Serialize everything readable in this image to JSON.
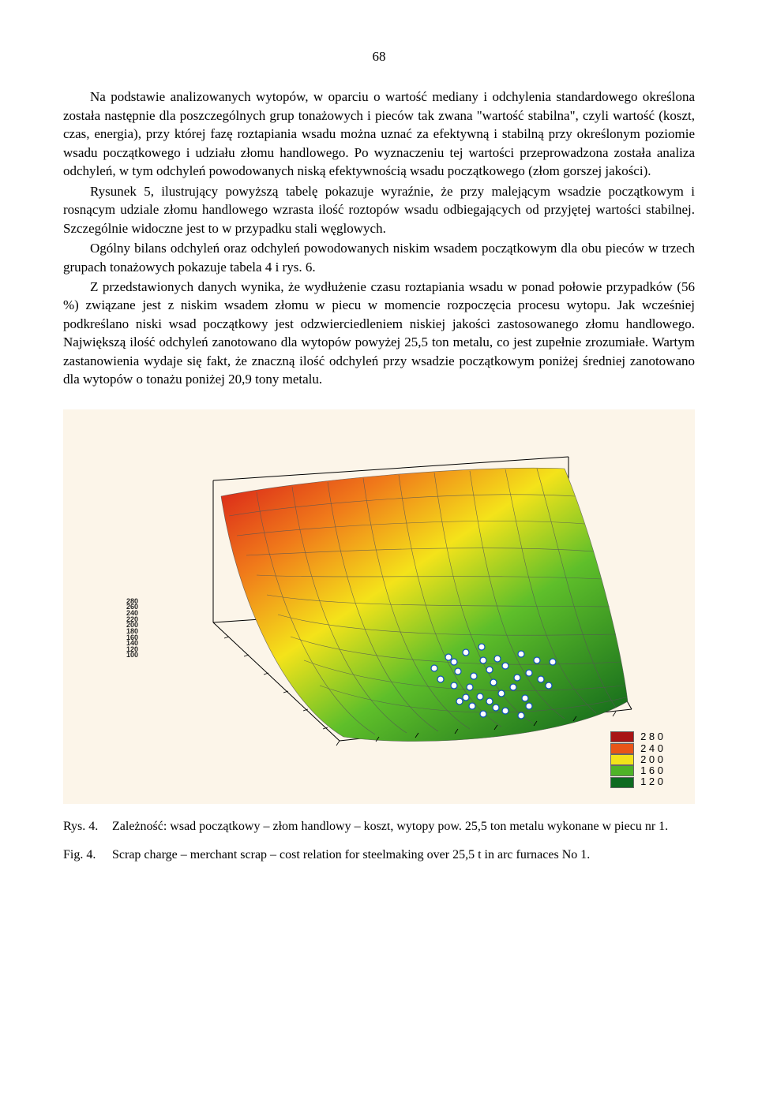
{
  "page_number": "68",
  "paragraphs": [
    "Na podstawie analizowanych wytopów, w oparciu o wartość mediany i odchylenia standardowego określona została następnie dla poszczególnych grup tonażowych i pieców tak zwana \"wartość stabilna\", czyli wartość (koszt, czas, energia), przy której fazę roztapiania wsadu można uznać za efektywną i stabilną przy określonym poziomie wsadu początkowego i udziału złomu handlowego. Po wyznaczeniu tej wartości przeprowadzona została analiza odchyleń, w tym odchyleń powodowanych niską efektywnością wsadu początkowego (złom gorszej jakości).",
    "Rysunek 5, ilustrujący powyższą tabelę pokazuje wyraźnie, że przy malejącym wsadzie początkowym i rosnącym udziale złomu handlowego wzrasta ilość roztopów wsadu odbiegających od przyjętej wartości stabilnej. Szczególnie widoczne jest to w przypadku stali węglowych.",
    "Ogólny bilans odchyleń oraz odchyleń powodowanych niskim wsadem początkowym dla obu pieców w trzech grupach tonażowych pokazuje tabela 4 i rys. 6.",
    "Z przedstawionych danych wynika, że wydłużenie czasu roztapiania wsadu w ponad połowie przypadków (56 %) związane jest z niskim wsadem złomu w piecu w momencie rozpoczęcia procesu wytopu. Jak wcześniej podkreślano niski wsad początkowy jest odzwierciedleniem niskiej jakości zastosowanego złomu handlowego. Największą ilość odchyleń zanotowano dla wytopów powyżej 25,5 ton metalu, co jest zupełnie zrozumiałe. Wartym zastanowienia wydaje się fakt, że znaczną ilość odchyleń przy wsadzie początkowym poniżej średniej zanotowano dla wytopów o tonażu poniżej 20,9 tony metalu."
  ],
  "chart": {
    "type": "3d-surface",
    "background_color": "#fcf5e9",
    "surface_gradient": {
      "high_color": "#d71919",
      "mid_high_color": "#f07a1a",
      "mid_color": "#f4e31a",
      "mid_low_color": "#5fbf2a",
      "low_color": "#0a5f1a"
    },
    "mesh_color": "#555555",
    "axis_color": "#000000",
    "scatter_marker": {
      "fill": "#ffffff",
      "stroke": "#1050c0",
      "radius": 4
    },
    "z_ticks": [
      "280",
      "260",
      "240",
      "220",
      "200",
      "180",
      "160",
      "140",
      "120",
      "100"
    ],
    "legend": [
      {
        "label": "2 8 0",
        "color": "#a81515"
      },
      {
        "label": "2 4 0",
        "color": "#e85518"
      },
      {
        "label": "2 0 0",
        "color": "#f2e21a"
      },
      {
        "label": "1 6 0",
        "color": "#4fb327"
      },
      {
        "label": "1 2 0",
        "color": "#0d6a1f"
      }
    ],
    "scatter_points": [
      [
        470,
        288
      ],
      [
        490,
        281
      ],
      [
        510,
        296
      ],
      [
        455,
        300
      ],
      [
        540,
        290
      ],
      [
        500,
        310
      ],
      [
        480,
        318
      ],
      [
        520,
        305
      ],
      [
        560,
        298
      ],
      [
        460,
        312
      ],
      [
        535,
        320
      ],
      [
        505,
        326
      ],
      [
        475,
        332
      ],
      [
        550,
        314
      ],
      [
        430,
        308
      ],
      [
        580,
        300
      ],
      [
        492,
        298
      ],
      [
        448,
        294
      ],
      [
        565,
        322
      ],
      [
        515,
        340
      ],
      [
        488,
        344
      ],
      [
        455,
        330
      ],
      [
        530,
        332
      ],
      [
        500,
        350
      ],
      [
        470,
        345
      ],
      [
        545,
        346
      ],
      [
        438,
        322
      ],
      [
        575,
        330
      ],
      [
        508,
        358
      ],
      [
        478,
        356
      ],
      [
        550,
        356
      ],
      [
        462,
        350
      ],
      [
        520,
        362
      ],
      [
        492,
        366
      ],
      [
        540,
        368
      ]
    ]
  },
  "captions": {
    "rys_label": "Rys. 4.",
    "rys_text": "Zależność: wsad początkowy – złom handlowy – koszt, wytopy pow. 25,5 ton metalu wykonane w piecu nr 1.",
    "fig_label": "Fig. 4.",
    "fig_text": "Scrap charge – merchant scrap – cost relation for steelmaking over 25,5 t in arc furnaces No 1."
  }
}
